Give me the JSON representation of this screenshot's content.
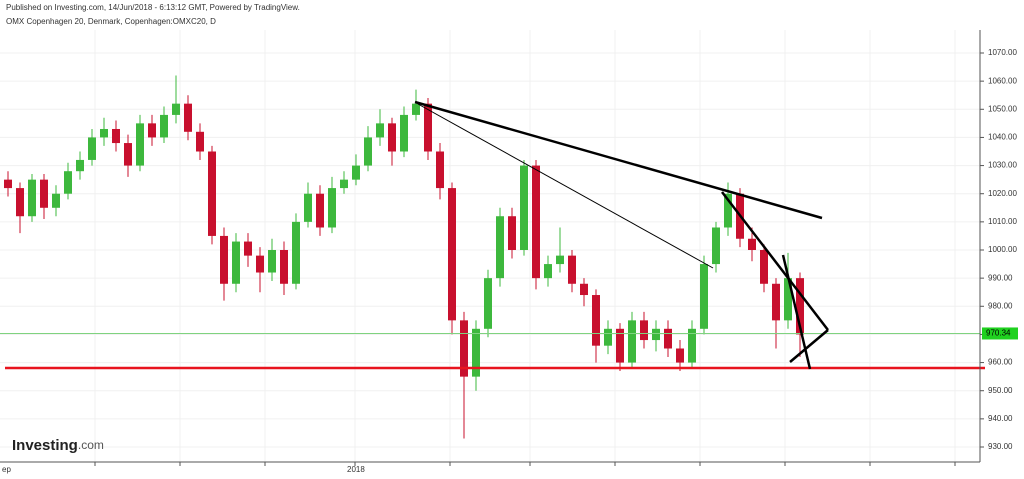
{
  "chart_data": {
    "type": "candlestick",
    "header": "Published on Investing.com, 14/Jun/2018 - 6:13:12 GMT, Powered by TradingView.",
    "title": "OMX Copenhagen 20, Denmark, Copenhagen:OMXC20, D",
    "logo": {
      "name": "Investing",
      "suffix": ".com"
    },
    "x_labels": [
      "ep",
      "2018"
    ],
    "up_color": "#3db83d",
    "down_color": "#c8102e",
    "ohlc": [
      [
        1025,
        1028,
        1019,
        1022
      ],
      [
        1022,
        1024,
        1006,
        1012
      ],
      [
        1012,
        1027,
        1010,
        1025
      ],
      [
        1025,
        1027,
        1011,
        1015
      ],
      [
        1015,
        1023,
        1012,
        1020
      ],
      [
        1020,
        1031,
        1018,
        1028
      ],
      [
        1028,
        1035,
        1025,
        1032
      ],
      [
        1032,
        1043,
        1030,
        1040
      ],
      [
        1040,
        1047,
        1037,
        1043
      ],
      [
        1043,
        1046,
        1035,
        1038
      ],
      [
        1038,
        1041,
        1026,
        1030
      ],
      [
        1030,
        1048,
        1028,
        1045
      ],
      [
        1045,
        1048,
        1037,
        1040
      ],
      [
        1040,
        1051,
        1038,
        1048
      ],
      [
        1048,
        1062,
        1045,
        1052
      ],
      [
        1052,
        1055,
        1039,
        1042
      ],
      [
        1042,
        1045,
        1032,
        1035
      ],
      [
        1035,
        1037,
        1002,
        1005
      ],
      [
        1005,
        1008,
        982,
        988
      ],
      [
        988,
        1006,
        985,
        1003
      ],
      [
        1003,
        1006,
        994,
        998
      ],
      [
        998,
        1001,
        985,
        992
      ],
      [
        992,
        1004,
        989,
        1000
      ],
      [
        1000,
        1003,
        984,
        988
      ],
      [
        988,
        1013,
        986,
        1010
      ],
      [
        1010,
        1024,
        1008,
        1020
      ],
      [
        1020,
        1023,
        1005,
        1008
      ],
      [
        1008,
        1026,
        1006,
        1022
      ],
      [
        1022,
        1028,
        1020,
        1025
      ],
      [
        1025,
        1034,
        1023,
        1030
      ],
      [
        1030,
        1044,
        1028,
        1040
      ],
      [
        1040,
        1050,
        1037,
        1045
      ],
      [
        1045,
        1047,
        1030,
        1035
      ],
      [
        1035,
        1051,
        1033,
        1048
      ],
      [
        1048,
        1057,
        1046,
        1052
      ],
      [
        1052,
        1054,
        1032,
        1035
      ],
      [
        1035,
        1038,
        1018,
        1022
      ],
      [
        1022,
        1024,
        970,
        975
      ],
      [
        975,
        978,
        933,
        955
      ],
      [
        955,
        975,
        950,
        972
      ],
      [
        972,
        993,
        969,
        990
      ],
      [
        990,
        1015,
        987,
        1012
      ],
      [
        1012,
        1015,
        997,
        1000
      ],
      [
        1000,
        1032,
        998,
        1030
      ],
      [
        1030,
        1032,
        986,
        990
      ],
      [
        990,
        998,
        987,
        995
      ],
      [
        995,
        1008,
        992,
        998
      ],
      [
        998,
        1000,
        985,
        988
      ],
      [
        988,
        990,
        980,
        984
      ],
      [
        984,
        986,
        960,
        966
      ],
      [
        966,
        975,
        963,
        972
      ],
      [
        972,
        974,
        957,
        960
      ],
      [
        960,
        978,
        958,
        975
      ],
      [
        975,
        978,
        965,
        968
      ],
      [
        968,
        975,
        964,
        972
      ],
      [
        972,
        975,
        962,
        965
      ],
      [
        965,
        968,
        957,
        960
      ],
      [
        960,
        975,
        958,
        972
      ],
      [
        972,
        998,
        970,
        995
      ],
      [
        995,
        1010,
        992,
        1008
      ],
      [
        1008,
        1024,
        1005,
        1020
      ],
      [
        1020,
        1022,
        1001,
        1004
      ],
      [
        1004,
        1008,
        996,
        1000
      ],
      [
        1000,
        1002,
        985,
        988
      ],
      [
        988,
        990,
        965,
        975
      ],
      [
        975,
        999,
        972,
        990
      ],
      [
        990,
        992,
        962,
        970
      ]
    ],
    "last_price": 970.34,
    "ylim": [
      930,
      1070
    ],
    "yticks": [
      {
        "value": 930,
        "label": "930.00"
      },
      {
        "value": 940,
        "label": "940.00"
      },
      {
        "value": 950,
        "label": "950.00"
      },
      {
        "value": 960,
        "label": "960.00"
      },
      {
        "value": 970,
        "label": "970.00"
      },
      {
        "value": 980,
        "label": "980.00"
      },
      {
        "value": 990,
        "label": "990.00"
      },
      {
        "value": 1000,
        "label": "1000.00"
      },
      {
        "value": 1010,
        "label": "1010.00"
      },
      {
        "value": 1020,
        "label": "1020.00"
      },
      {
        "value": 1030,
        "label": "1030.00"
      },
      {
        "value": 1040,
        "label": "1040.00"
      },
      {
        "value": 1050,
        "label": "1050.00"
      },
      {
        "value": 1060,
        "label": "1060.00"
      },
      {
        "value": 1070,
        "label": "1070.00"
      }
    ],
    "grid": true
  }
}
